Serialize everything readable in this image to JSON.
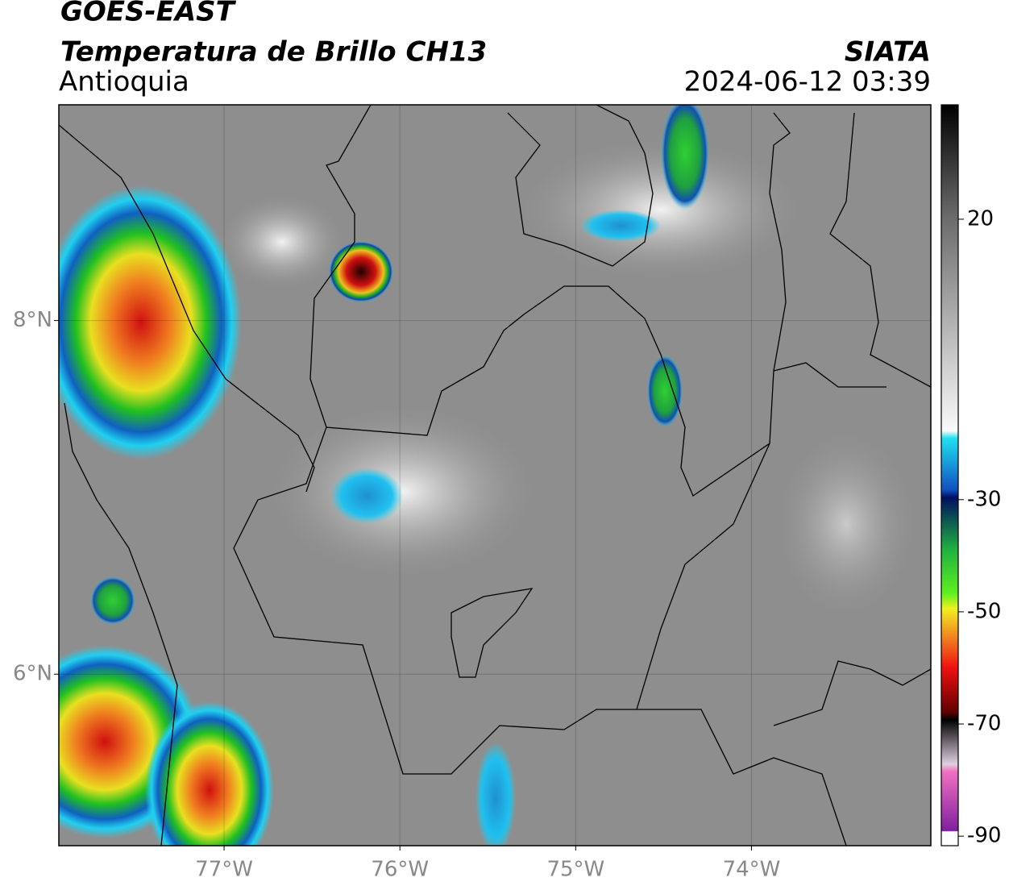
{
  "header": {
    "satellite": "GOES-EAST",
    "product": "Temperatura de Brillo CH13",
    "region": "Antioquia",
    "agency": "SIATA",
    "datetime": "2024-06-12 03:39"
  },
  "map": {
    "xlim": [
      -77.94,
      -72.98
    ],
    "ylim": [
      5.03,
      9.22
    ],
    "xticks": [
      {
        "value": -77,
        "label": "77°W"
      },
      {
        "value": -76,
        "label": "76°W"
      },
      {
        "value": -75,
        "label": "75°W"
      },
      {
        "value": -74,
        "label": "74°W"
      }
    ],
    "yticks": [
      {
        "value": 6,
        "label": "6°N"
      },
      {
        "value": 8,
        "label": "8°N"
      }
    ],
    "grid": true
  },
  "colorbar": {
    "ylim": [
      -91.7,
      40.4
    ],
    "yticks": [
      20,
      -30,
      -50,
      -70,
      -90
    ]
  }
}
